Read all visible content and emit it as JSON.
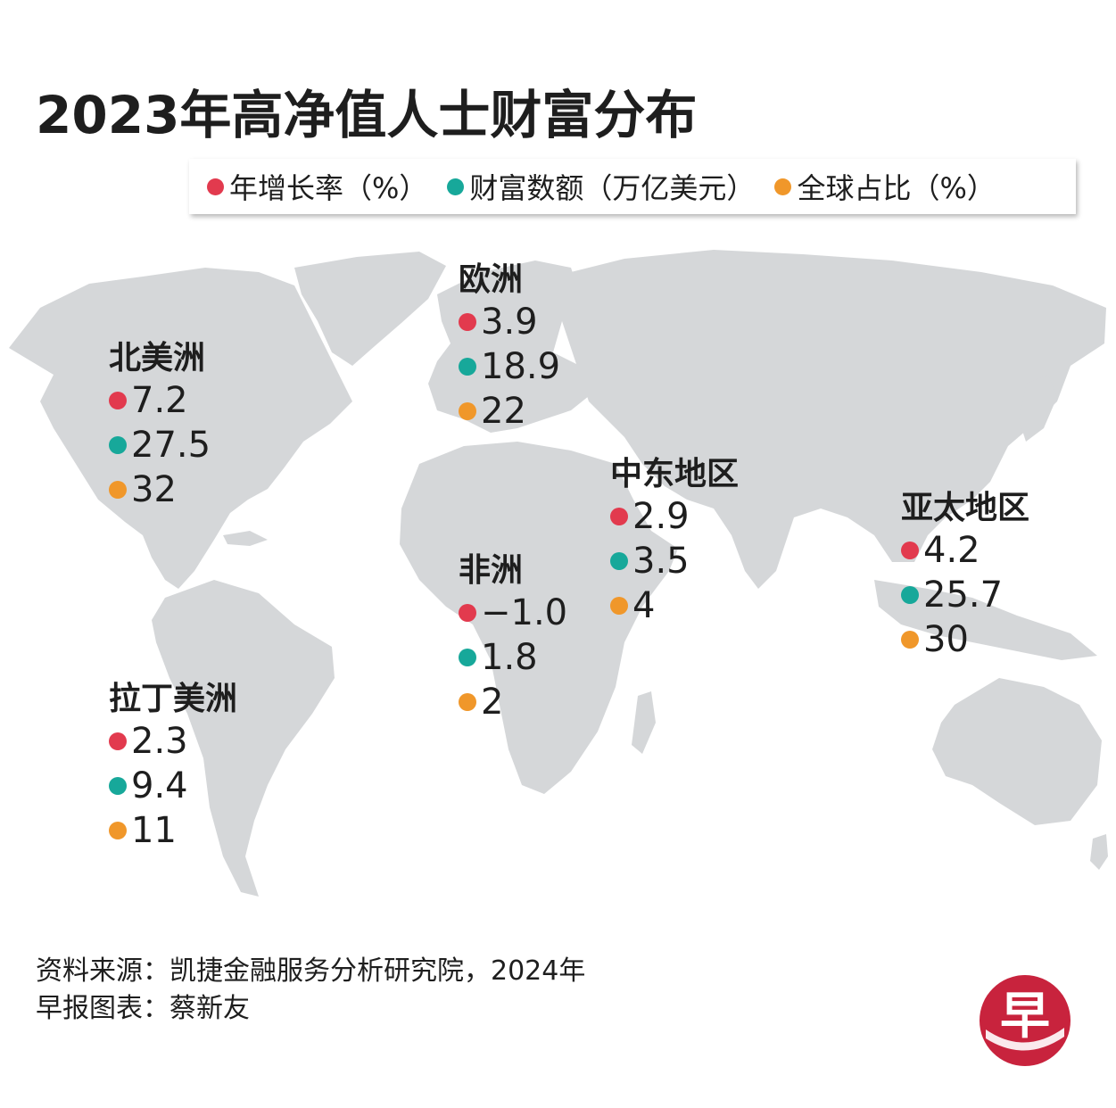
{
  "title": "2023年高净值人士财富分布",
  "legend": [
    {
      "label": "年增长率（%）",
      "color": "#e23a4e"
    },
    {
      "label": "财富数额（万亿美元）",
      "color": "#17a89a"
    },
    {
      "label": "全球占比（%）",
      "color": "#f0972a"
    }
  ],
  "regions": [
    {
      "name": "北美洲",
      "growth": "7.2",
      "wealth": "27.5",
      "share": "32"
    },
    {
      "name": "欧洲",
      "growth": "3.9",
      "wealth": "18.9",
      "share": "22"
    },
    {
      "name": "中东地区",
      "growth": "2.9",
      "wealth": "3.5",
      "share": "4"
    },
    {
      "name": "亚太地区",
      "growth": "4.2",
      "wealth": "25.7",
      "share": "30"
    },
    {
      "name": "非洲",
      "growth": "−1.0",
      "wealth": "1.8",
      "share": "2"
    },
    {
      "name": "拉丁美洲",
      "growth": "2.3",
      "wealth": "9.4",
      "share": "11"
    }
  ],
  "source": {
    "line1": "资料来源：凯捷金融服务分析研究院，2024年",
    "line2": "早报图表：蔡新友"
  },
  "logo": {
    "glyph": "早",
    "color": "#c8233d"
  },
  "map_color": "#d5d7d9"
}
